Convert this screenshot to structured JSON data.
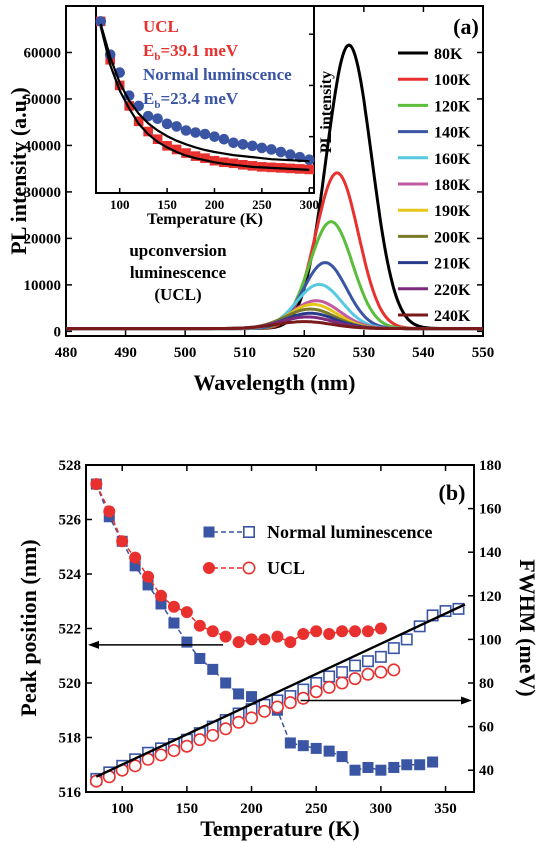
{
  "chart_data": [
    {
      "type": "line",
      "panel_label": "(a)",
      "xlabel": "Wavelength (nm)",
      "ylabel": "PL intensity (a.u.)",
      "xlim": [
        480,
        550
      ],
      "ylim": [
        -1000,
        70000
      ],
      "xticks": [
        480,
        490,
        500,
        510,
        520,
        530,
        540,
        550
      ],
      "yticks": [
        0,
        10000,
        20000,
        30000,
        40000,
        50000,
        60000
      ],
      "annotation": [
        "upconversion",
        "luminescence",
        "(UCL)"
      ],
      "legend_placement": "right",
      "series": [
        {
          "name": "80K",
          "color": "#000000",
          "peak_nm": 527.5,
          "peak": 61000,
          "width_nm": 3.8
        },
        {
          "name": "100K",
          "color": "#e8312f",
          "peak_nm": 525.5,
          "peak": 33500,
          "width_nm": 3.6
        },
        {
          "name": "120K",
          "color": "#5bbd3c",
          "peak_nm": 524.5,
          "peak": 23000,
          "width_nm": 3.6
        },
        {
          "name": "140K",
          "color": "#3a55a4",
          "peak_nm": 523.5,
          "peak": 14200,
          "width_nm": 3.6
        },
        {
          "name": "160K",
          "color": "#57c8e0",
          "peak_nm": 522.5,
          "peak": 9500,
          "width_nm": 3.8
        },
        {
          "name": "180K",
          "color": "#c25aa0",
          "peak_nm": 522.0,
          "peak": 6000,
          "width_nm": 4.0
        },
        {
          "name": "190K",
          "color": "#e6c619",
          "peak_nm": 521.5,
          "peak": 5200,
          "width_nm": 4.0
        },
        {
          "name": "200K",
          "color": "#7a7a2a",
          "peak_nm": 521.0,
          "peak": 4200,
          "width_nm": 4.2
        },
        {
          "name": "210K",
          "color": "#2a3a8a",
          "peak_nm": 521.0,
          "peak": 3300,
          "width_nm": 4.2
        },
        {
          "name": "220K",
          "color": "#7d2a7d",
          "peak_nm": 520.5,
          "peak": 2500,
          "width_nm": 4.4
        },
        {
          "name": "240K",
          "color": "#7a1a1a",
          "peak_nm": 520.0,
          "peak": 1500,
          "width_nm": 4.6
        }
      ]
    },
    {
      "type": "scatter",
      "inset": true,
      "xlabel": "Temperature (K)",
      "ylabel": "PL intensity",
      "xlim": [
        75,
        305
      ],
      "ylim": [
        29000,
        65500
      ],
      "xticks": [
        100,
        150,
        200,
        250,
        300
      ],
      "yticks": [
        30000,
        40000,
        50000,
        60000
      ],
      "legend_text": {
        "ucl": "UCL",
        "ucl_eb_main": "E",
        "ucl_eb_sub": "b",
        "ucl_eb_value": "=39.1 meV",
        "normal": "Normal luminscence",
        "normal_eb_main": "E",
        "normal_eb_sub": "b",
        "normal_eb_value": "=23.4 meV"
      },
      "series": [
        {
          "name": "UCL",
          "color": "#e8312f",
          "marker": "square",
          "x": [
            80,
            90,
            100,
            110,
            120,
            130,
            140,
            150,
            160,
            170,
            180,
            190,
            200,
            210,
            220,
            230,
            240,
            250,
            260,
            270,
            280,
            290,
            300
          ],
          "y": [
            62500,
            55000,
            50000,
            46000,
            43000,
            41000,
            39500,
            38200,
            37500,
            36800,
            36200,
            35800,
            35300,
            35000,
            34800,
            34500,
            34300,
            34100,
            34000,
            33900,
            33800,
            33700,
            33600
          ]
        },
        {
          "name": "Normal luminscence",
          "color": "#3a55a4",
          "marker": "circle",
          "x": [
            80,
            90,
            100,
            110,
            120,
            130,
            140,
            150,
            160,
            170,
            180,
            190,
            200,
            210,
            220,
            230,
            240,
            250,
            260,
            270,
            280,
            290,
            300
          ],
          "y": [
            62500,
            56000,
            52500,
            48000,
            46000,
            44000,
            43500,
            42500,
            42000,
            41200,
            40800,
            40500,
            40000,
            39500,
            38800,
            38500,
            38200,
            37800,
            37500,
            37000,
            36500,
            36000,
            35500
          ]
        },
        {
          "name": "",
          "color": "#000000",
          "marker": "line",
          "role": "fit",
          "x": [
            80,
            90,
            100,
            110,
            120,
            130,
            140,
            150,
            160,
            170,
            180,
            190,
            200,
            210,
            220,
            230,
            240,
            250,
            260,
            270,
            280,
            290,
            300
          ],
          "y": [
            62000,
            55500,
            50500,
            47000,
            44500,
            42600,
            41200,
            40100,
            39200,
            38500,
            37900,
            37400,
            37000,
            36700,
            36400,
            36200,
            36000,
            35800,
            35600,
            35500,
            35400,
            35300,
            35200
          ]
        },
        {
          "name": "",
          "color": "#000000",
          "marker": "line",
          "role": "fit",
          "x": [
            80,
            90,
            100,
            110,
            120,
            130,
            140,
            150,
            160,
            170,
            180,
            190,
            200,
            210,
            220,
            230,
            240,
            250,
            260,
            270,
            280,
            290,
            300
          ],
          "y": [
            61500,
            54000,
            49000,
            45500,
            42500,
            40500,
            39000,
            37900,
            37000,
            36300,
            35800,
            35400,
            35000,
            34700,
            34500,
            34300,
            34100,
            34000,
            33900,
            33800,
            33700,
            33600,
            33500
          ]
        }
      ]
    },
    {
      "type": "scatter",
      "panel_label": "(b)",
      "xlabel": "Temperature (K)",
      "ylabel": "Peak position (nm)",
      "y2label": "FWHM (meV)",
      "xlim": [
        72,
        372
      ],
      "ylim": [
        516,
        528
      ],
      "y2lim": [
        30,
        180
      ],
      "xticks": [
        100,
        150,
        200,
        250,
        300,
        350
      ],
      "yticks": [
        516,
        518,
        520,
        522,
        524,
        526,
        528
      ],
      "y2ticks": [
        40,
        60,
        80,
        100,
        120,
        140,
        160,
        180
      ],
      "legend": [
        "Normal luminescence",
        "UCL"
      ],
      "legend_placement": "top-right",
      "series": [
        {
          "name": "Normal luminescence",
          "axis": "left",
          "color": "#3a55a4",
          "marker": "square-filled",
          "x": [
            80,
            90,
            100,
            110,
            120,
            130,
            140,
            150,
            160,
            170,
            180,
            190,
            200,
            210,
            220,
            230,
            240,
            250,
            260,
            270,
            280,
            290,
            300,
            310,
            320,
            330,
            340
          ],
          "y": [
            527.3,
            526.1,
            525.2,
            524.3,
            523.6,
            522.9,
            522.2,
            521.5,
            520.9,
            520.5,
            520.0,
            519.6,
            519.5,
            519.2,
            519.0,
            517.8,
            517.7,
            517.6,
            517.5,
            517.3,
            516.8,
            516.9,
            516.8,
            516.9,
            517.0,
            517.0,
            517.1
          ]
        },
        {
          "name": "UCL",
          "axis": "left",
          "color": "#e8312f",
          "marker": "circle-filled",
          "x": [
            80,
            90,
            100,
            110,
            120,
            130,
            140,
            150,
            160,
            170,
            180,
            190,
            200,
            210,
            220,
            230,
            240,
            250,
            260,
            270,
            280,
            290,
            300
          ],
          "y": [
            527.3,
            526.3,
            525.2,
            524.6,
            523.9,
            523.2,
            522.8,
            522.6,
            522.1,
            521.9,
            521.7,
            521.5,
            521.6,
            521.6,
            521.7,
            521.5,
            521.8,
            521.9,
            521.8,
            521.9,
            521.9,
            521.9,
            522.0
          ]
        },
        {
          "name": "Normal luminescence",
          "axis": "right",
          "color": "#3a55a4",
          "marker": "square-open",
          "x": [
            80,
            90,
            100,
            110,
            120,
            130,
            140,
            150,
            160,
            170,
            180,
            190,
            200,
            210,
            220,
            230,
            240,
            250,
            260,
            270,
            280,
            290,
            300,
            310,
            320,
            330,
            340,
            350,
            360
          ],
          "y": [
            36,
            39,
            42,
            45,
            48,
            50,
            52,
            54,
            57,
            60,
            63,
            66,
            68,
            70,
            72,
            74,
            77,
            80,
            83,
            85,
            88,
            90,
            92,
            96,
            100,
            106,
            111,
            113,
            114
          ]
        },
        {
          "name": "UCL",
          "axis": "right",
          "color": "#e8312f",
          "marker": "circle-open",
          "x": [
            80,
            90,
            100,
            110,
            120,
            130,
            140,
            150,
            160,
            170,
            180,
            190,
            200,
            210,
            220,
            230,
            240,
            250,
            260,
            270,
            280,
            290,
            300,
            310
          ],
          "y": [
            35,
            37,
            40,
            42,
            45,
            47,
            49,
            51,
            54,
            56,
            59,
            62,
            64,
            67,
            69,
            71,
            73,
            76,
            78,
            80,
            82,
            84,
            85,
            86
          ]
        },
        {
          "name": "",
          "axis": "right",
          "color": "#000000",
          "marker": "line",
          "role": "fit",
          "x": [
            80,
            365
          ],
          "y": [
            37,
            116
          ]
        }
      ]
    }
  ]
}
